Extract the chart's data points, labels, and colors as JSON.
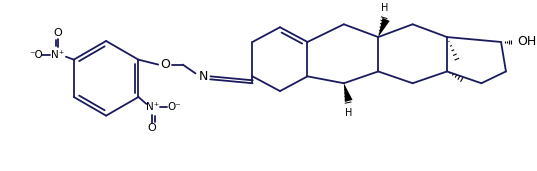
{
  "bg_color": "#ffffff",
  "line_color": "#1a1a5e",
  "text_color": "#000000",
  "lw": 1.3,
  "figsize": [
    5.37,
    1.71
  ],
  "dpi": 100,
  "xlim": [
    0,
    537
  ],
  "ylim": [
    0,
    171
  ]
}
